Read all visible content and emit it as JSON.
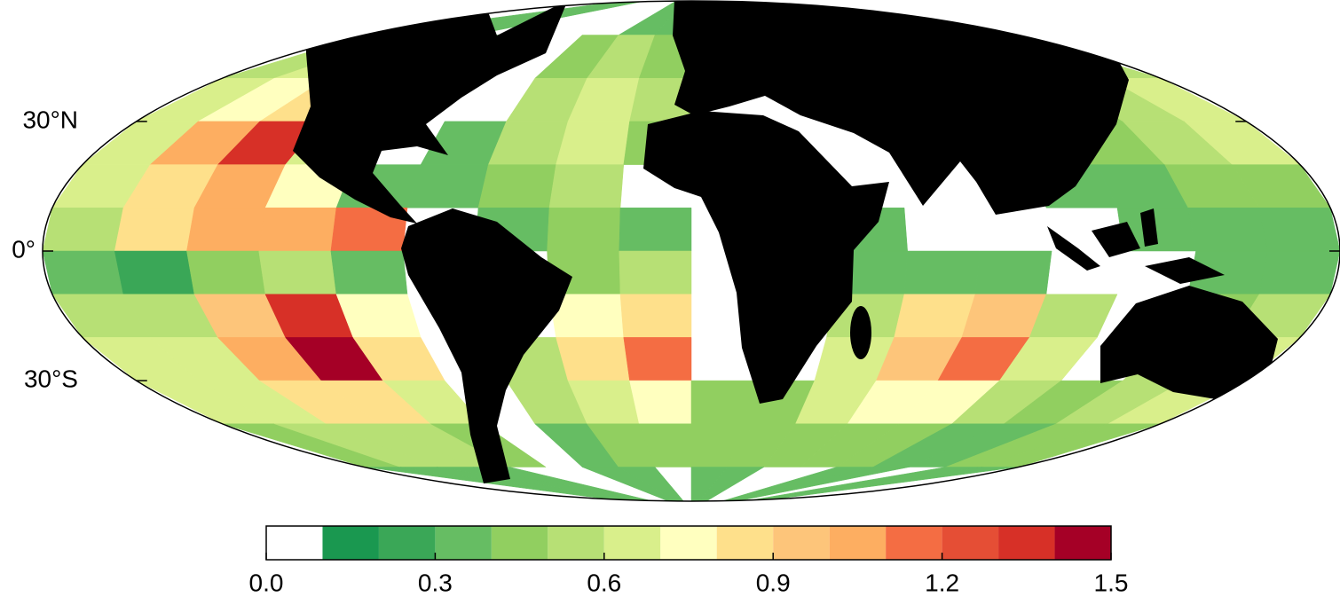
{
  "chart_data": {
    "type": "map",
    "yticks": [
      {
        "value": 30,
        "label": "30°N"
      },
      {
        "value": 0,
        "label": "0°"
      },
      {
        "value": -30,
        "label": "30°S"
      }
    ],
    "field": {
      "lon_edges": [
        -180,
        -160,
        -140,
        -120,
        -100,
        -80,
        -60,
        -40,
        -20,
        0,
        20,
        40,
        60,
        80,
        100,
        120,
        140,
        160,
        180
      ],
      "lat_edges": [
        60,
        50,
        40,
        30,
        20,
        10,
        0,
        -10,
        -20,
        -30,
        -40,
        -50,
        -60
      ],
      "values": [
        [
          0.3,
          0.3,
          0.3,
          null,
          null,
          null,
          null,
          0.3,
          0.3,
          null,
          null,
          null,
          null,
          null,
          null,
          null,
          0.3,
          0.3
        ],
        [
          0.5,
          0.6,
          0.5,
          0.3,
          null,
          null,
          0.4,
          0.5,
          0.4,
          null,
          null,
          null,
          null,
          null,
          null,
          0.3,
          0.4,
          0.5
        ],
        [
          0.6,
          0.7,
          0.8,
          0.4,
          null,
          null,
          0.5,
          0.6,
          0.5,
          null,
          null,
          null,
          null,
          null,
          null,
          0.4,
          0.5,
          0.6
        ],
        [
          0.6,
          1.0,
          1.3,
          0.6,
          null,
          0.3,
          0.5,
          0.6,
          0.4,
          null,
          null,
          null,
          null,
          null,
          0.4,
          0.4,
          0.5,
          0.6
        ],
        [
          0.6,
          0.8,
          1.0,
          0.7,
          0.3,
          0.3,
          0.4,
          0.5,
          null,
          null,
          null,
          null,
          null,
          null,
          0.3,
          0.3,
          0.4,
          0.4
        ],
        [
          0.5,
          0.8,
          1.0,
          1.0,
          1.1,
          null,
          0.3,
          0.4,
          0.3,
          null,
          null,
          0.3,
          null,
          null,
          null,
          0.3,
          0.3,
          0.3
        ],
        [
          0.3,
          0.2,
          0.4,
          0.5,
          0.3,
          null,
          null,
          0.4,
          0.5,
          null,
          null,
          0.3,
          0.3,
          0.3,
          null,
          null,
          0.3,
          0.3
        ],
        [
          0.5,
          0.5,
          0.9,
          1.3,
          0.7,
          null,
          null,
          0.7,
          0.8,
          null,
          null,
          0.5,
          0.8,
          0.9,
          0.5,
          null,
          0.4,
          0.5
        ],
        [
          0.6,
          0.6,
          1.0,
          1.4,
          0.8,
          null,
          0.5,
          0.8,
          1.1,
          null,
          null,
          0.6,
          0.9,
          1.1,
          0.6,
          null,
          0.5,
          0.6
        ],
        [
          0.6,
          0.6,
          0.8,
          0.8,
          0.6,
          null,
          0.5,
          0.6,
          0.7,
          0.4,
          0.4,
          0.6,
          0.7,
          0.7,
          0.5,
          0.4,
          0.5,
          0.6
        ],
        [
          0.4,
          0.5,
          0.5,
          0.5,
          0.4,
          null,
          0.3,
          0.4,
          0.4,
          0.4,
          0.4,
          0.4,
          0.4,
          0.4,
          0.3,
          0.3,
          0.4,
          0.4
        ],
        [
          0.3,
          0.3,
          0.3,
          0.3,
          null,
          null,
          0.3,
          0.3,
          null,
          0.3,
          0.3,
          null,
          null,
          0.3,
          0.3,
          null,
          0.3,
          0.3
        ]
      ]
    },
    "colorbar": {
      "levels": [
        0,
        0.1,
        0.2,
        0.3,
        0.4,
        0.5,
        0.6,
        0.7,
        0.8,
        0.9,
        1.0,
        1.1,
        1.2,
        1.3,
        1.4,
        1.5
      ],
      "colors": [
        "#ffffff",
        "#1a9850",
        "#3aa757",
        "#66bd63",
        "#91cf60",
        "#b7e075",
        "#d9ef8b",
        "#ffffbf",
        "#fee08b",
        "#fdc57a",
        "#fdae61",
        "#f46d43",
        "#e54e35",
        "#d73027",
        "#a50026"
      ],
      "lim": [
        0,
        1.5
      ],
      "ticks": [
        {
          "value": 0,
          "label": "0.0"
        },
        0.3,
        0.6,
        0.9,
        1.2,
        1.5
      ]
    }
  }
}
